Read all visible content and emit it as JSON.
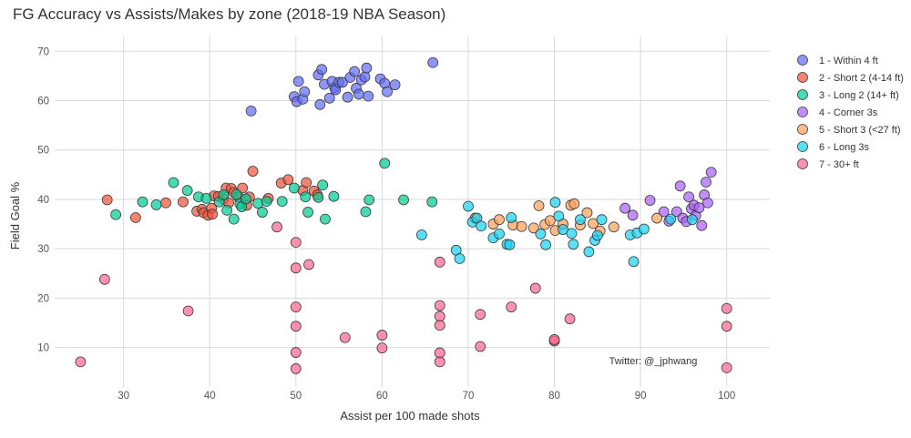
{
  "chart_data": {
    "type": "scatter",
    "title": "FG Accuracy vs Assists/Makes by zone (2018-19 NBA Season)",
    "xlabel": "Assist per 100 made shots",
    "ylabel": "Field Goal %",
    "xlim": [
      22,
      105
    ],
    "ylim": [
      2,
      73
    ],
    "xticks": [
      30,
      40,
      50,
      60,
      70,
      80,
      90,
      100
    ],
    "yticks": [
      10,
      20,
      30,
      40,
      50,
      60,
      70
    ],
    "grid": true,
    "legend_position": "right",
    "annotation": "Twitter: @_jphwang",
    "series": [
      {
        "name": "1 - Within 4 ft",
        "color": "#636efa",
        "x": [
          44.8,
          49.8,
          50.1,
          50.3,
          50.8,
          51.0,
          52.6,
          52.8,
          53.0,
          53.3,
          53.9,
          54.2,
          54.5,
          54.6,
          55.0,
          55.4,
          56.0,
          56.3,
          56.8,
          57.0,
          57.3,
          57.6,
          58.0,
          58.2,
          58.4,
          59.8,
          60.3,
          60.6,
          61.5,
          65.9
        ],
        "y": [
          57.9,
          60.8,
          59.8,
          63.9,
          60.3,
          61.8,
          65.2,
          59.2,
          66.3,
          63.3,
          60.5,
          63.9,
          62.6,
          62.2,
          63.7,
          63.7,
          60.7,
          64.7,
          65.9,
          62.5,
          61.3,
          64.2,
          64.8,
          66.6,
          60.9,
          64.4,
          63.5,
          61.8,
          63.2,
          67.7
        ]
      },
      {
        "name": "2 - Short 2 (4-14 ft)",
        "color": "#ef553b",
        "x": [
          28.1,
          31.4,
          34.9,
          36.9,
          38.5,
          39.1,
          39.3,
          39.8,
          40.2,
          40.3,
          40.5,
          41.0,
          41.6,
          41.9,
          42.2,
          42.5,
          42.8,
          43.3,
          43.8,
          44.3,
          44.6,
          45.0,
          46.8,
          48.3,
          49.1,
          50.8,
          51.2,
          52.1,
          52.5
        ],
        "y": [
          39.9,
          36.3,
          39.3,
          39.5,
          37.6,
          38.0,
          37.3,
          36.8,
          38.2,
          37.0,
          40.7,
          40.6,
          40.1,
          42.3,
          39.3,
          42.2,
          41.4,
          40.5,
          42.3,
          38.8,
          40.5,
          45.7,
          40.2,
          43.3,
          44.0,
          41.8,
          43.4,
          41.7,
          40.9
        ]
      },
      {
        "name": "3 - Long 2 (14+ ft)",
        "color": "#00cc96",
        "x": [
          29.1,
          32.2,
          33.8,
          35.8,
          37.4,
          38.7,
          39.6,
          41.1,
          41.6,
          42.0,
          42.8,
          43.1,
          43.5,
          43.7,
          44.2,
          45.6,
          46.1,
          46.6,
          48.4,
          49.8,
          51.1,
          51.4,
          52.6,
          53.1,
          53.4,
          54.4,
          58.1,
          58.5,
          60.3,
          62.5,
          65.8
        ],
        "y": [
          36.9,
          39.5,
          38.9,
          43.4,
          41.8,
          40.5,
          40.2,
          39.5,
          40.9,
          37.8,
          36.0,
          41.0,
          39.1,
          38.5,
          40.1,
          39.2,
          37.4,
          39.6,
          39.6,
          42.3,
          40.5,
          37.4,
          40.4,
          42.9,
          36.0,
          40.6,
          37.5,
          39.9,
          47.3,
          39.9,
          39.5
        ]
      },
      {
        "name": "4 - Corner 3s",
        "color": "#ab63fa",
        "x": [
          88.2,
          89.1,
          91.1,
          92.7,
          93.3,
          94.2,
          94.6,
          94.9,
          95.3,
          95.6,
          95.9,
          96.2,
          96.4,
          96.8,
          97.1,
          97.4,
          97.6,
          97.8,
          98.2
        ],
        "y": [
          38.2,
          36.8,
          39.8,
          37.5,
          35.6,
          37.5,
          42.7,
          36.2,
          35.5,
          40.5,
          38.1,
          38.8,
          36.7,
          38.3,
          34.7,
          40.9,
          43.5,
          39.3,
          45.5
        ]
      },
      {
        "name": "5 - Short 3 (<27 ft)",
        "color": "#ffa15a",
        "x": [
          70.8,
          72.9,
          73.6,
          75.2,
          76.2,
          77.6,
          78.2,
          78.9,
          79.5,
          80.1,
          81.0,
          81.9,
          82.3,
          83.0,
          83.8,
          84.5,
          85.3,
          86.9,
          91.9
        ],
        "y": [
          36.2,
          35.0,
          35.9,
          34.8,
          34.5,
          34.2,
          38.7,
          34.9,
          35.7,
          33.7,
          35.0,
          38.8,
          39.1,
          34.8,
          37.3,
          35.1,
          33.6,
          34.4,
          36.2
        ]
      },
      {
        "name": "6 - Long 3s",
        "color": "#19d3f3",
        "x": [
          64.6,
          68.6,
          69.0,
          70.0,
          70.5,
          71.0,
          71.5,
          72.9,
          73.6,
          74.5,
          74.8,
          75.0,
          78.4,
          79.0,
          80.1,
          80.5,
          81.0,
          82.0,
          82.2,
          83.0,
          84.0,
          84.7,
          85.0,
          85.5,
          88.8,
          89.2,
          89.6,
          90.4,
          93.5,
          96.0
        ],
        "y": [
          32.8,
          29.7,
          28.0,
          38.6,
          35.4,
          36.2,
          34.6,
          32.2,
          33.0,
          30.9,
          30.8,
          36.3,
          33.0,
          30.8,
          39.4,
          36.6,
          33.9,
          33.1,
          30.9,
          35.9,
          29.4,
          31.7,
          32.7,
          35.9,
          32.8,
          27.4,
          33.2,
          34.0,
          36.0,
          35.9
        ]
      },
      {
        "name": "7 - 30+ ft",
        "color": "#ff6692",
        "x": [
          25.0,
          27.8,
          37.5,
          47.8,
          50.0,
          50.0,
          50.0,
          50.0,
          50.0,
          50.0,
          51.5,
          55.7,
          60.0,
          60.0,
          66.7,
          66.7,
          66.7,
          66.7,
          66.7,
          66.7,
          71.4,
          71.4,
          75.0,
          77.8,
          80.0,
          80.0,
          81.8,
          100.0,
          100.0,
          100.0
        ],
        "y": [
          7.1,
          23.8,
          17.4,
          34.4,
          31.3,
          26.1,
          18.2,
          14.3,
          9.0,
          5.7,
          26.8,
          12.0,
          12.5,
          9.9,
          27.3,
          18.5,
          16.3,
          14.5,
          8.9,
          7.1,
          16.7,
          10.2,
          18.2,
          22.0,
          11.3,
          11.6,
          15.8,
          17.9,
          14.3,
          5.9
        ]
      }
    ]
  }
}
